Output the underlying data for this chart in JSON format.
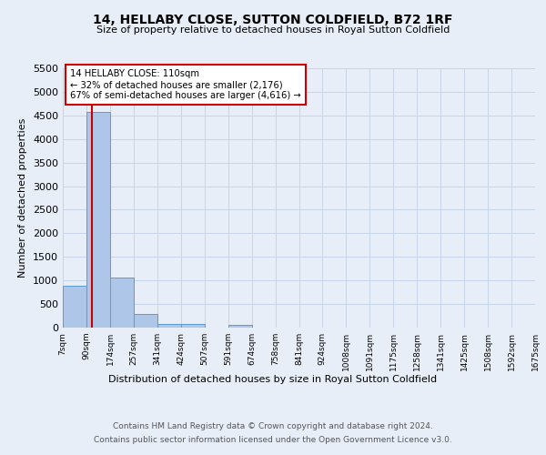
{
  "title": "14, HELLABY CLOSE, SUTTON COLDFIELD, B72 1RF",
  "subtitle": "Size of property relative to detached houses in Royal Sutton Coldfield",
  "xlabel": "Distribution of detached houses by size in Royal Sutton Coldfield",
  "ylabel": "Number of detached properties",
  "footer_line1": "Contains HM Land Registry data © Crown copyright and database right 2024.",
  "footer_line2": "Contains public sector information licensed under the Open Government Licence v3.0.",
  "annotation_title": "14 HELLABY CLOSE: 110sqm",
  "annotation_line1": "← 32% of detached houses are smaller (2,176)",
  "annotation_line2": "67% of semi-detached houses are larger (4,616) →",
  "property_size": 110,
  "bar_edges": [
    7,
    90,
    174,
    257,
    341,
    424,
    507,
    591,
    674,
    758,
    841,
    924,
    1008,
    1091,
    1175,
    1258,
    1341,
    1425,
    1508,
    1592,
    1675
  ],
  "bar_heights": [
    880,
    4570,
    1060,
    280,
    80,
    70,
    0,
    50,
    0,
    0,
    0,
    0,
    0,
    0,
    0,
    0,
    0,
    0,
    0,
    0
  ],
  "bar_color": "#aec6e8",
  "bar_edgecolor": "#5b9bd5",
  "vline_color": "#cc0000",
  "vline_x": 110,
  "annotation_box_color": "#cc0000",
  "ylim": [
    0,
    5500
  ],
  "yticks": [
    0,
    500,
    1000,
    1500,
    2000,
    2500,
    3000,
    3500,
    4000,
    4500,
    5000,
    5500
  ],
  "grid_color": "#c8d4e8",
  "background_color": "#e8eef8",
  "plot_bg_color": "#e8eef8"
}
